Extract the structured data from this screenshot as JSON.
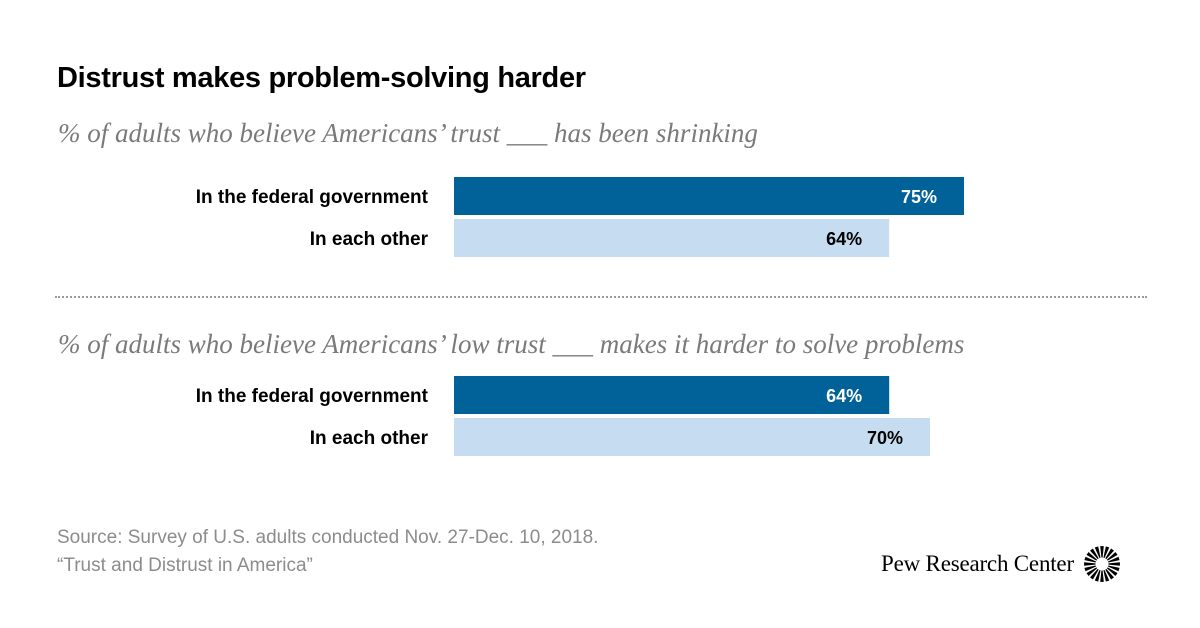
{
  "title": "Distrust makes problem-solving harder",
  "source": {
    "line1": "Source: Survey of U.S. adults conducted Nov. 27-Dec. 10, 2018.",
    "line2": "“Trust and Distrust in America”"
  },
  "brand": {
    "name": "Pew Research Center",
    "logo_icon": "pew-sunburst-icon"
  },
  "colors": {
    "dark_bar": "#006299",
    "light_bar": "#c6dcf0",
    "dark_label": "#ffffff",
    "light_label": "#000000"
  },
  "chart_data": [
    {
      "type": "bar",
      "orientation": "horizontal",
      "subtitle": "% of adults who believe Americans’ trust ___ has been shrinking",
      "categories": [
        "In the federal government",
        "In each other"
      ],
      "values": [
        75,
        64
      ],
      "value_labels": [
        "75%",
        "64%"
      ],
      "xlim": [
        0,
        100
      ]
    },
    {
      "type": "bar",
      "orientation": "horizontal",
      "subtitle": "% of adults who believe Americans’ low trust ___ makes it harder to solve problems",
      "categories": [
        "In the federal government",
        "In each other"
      ],
      "values": [
        64,
        70
      ],
      "value_labels": [
        "64%",
        "70%"
      ],
      "xlim": [
        0,
        100
      ]
    }
  ]
}
